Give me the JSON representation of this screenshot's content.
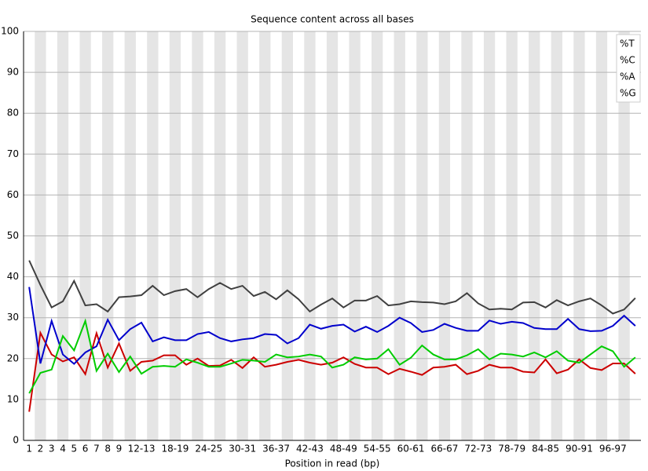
{
  "chart_data": {
    "type": "line",
    "title": "Sequence content across all bases",
    "x_label": "Position in read (bp)",
    "categories": [
      "1",
      "2",
      "3",
      "4",
      "5",
      "6",
      "7",
      "8",
      "9",
      null,
      "12-13",
      null,
      null,
      "18-19",
      null,
      null,
      "24-25",
      null,
      null,
      "30-31",
      null,
      null,
      "36-37",
      null,
      null,
      "42-43",
      null,
      null,
      "48-49",
      null,
      null,
      "54-55",
      null,
      null,
      "60-61",
      null,
      null,
      "66-67",
      null,
      null,
      "72-73",
      null,
      null,
      "78-79",
      null,
      null,
      "84-85",
      null,
      null,
      "90-91",
      null,
      null,
      "96-97",
      null,
      null
    ],
    "series": [
      {
        "name": "%T",
        "color": "#cc0000",
        "values": [
          7,
          26.3,
          21,
          19.3,
          20.3,
          16.2,
          26.2,
          17.8,
          23.7,
          17,
          19.2,
          19.5,
          20.8,
          20.8,
          18.5,
          20,
          18.2,
          18.3,
          19.7,
          17.7,
          20.3,
          18,
          18.5,
          19.2,
          19.7,
          19,
          18.5,
          19,
          20.3,
          18.7,
          17.8,
          17.8,
          16.2,
          17.5,
          16.8,
          16,
          17.8,
          18,
          18.5,
          16.2,
          17,
          18.5,
          17.8,
          17.8,
          16.8,
          16.6,
          19.8,
          16.4,
          17.3,
          19.8,
          17.7,
          17.2,
          18.8,
          18.8,
          16.3
        ]
      },
      {
        "name": "%C",
        "color": "#0000cc",
        "values": [
          37.5,
          18.8,
          29.2,
          21,
          18.7,
          21.5,
          23,
          29.5,
          24.5,
          27.2,
          28.8,
          24.2,
          25.2,
          24.5,
          24.5,
          26,
          26.5,
          25,
          24.2,
          24.7,
          25,
          26,
          25.8,
          23.7,
          25,
          28.3,
          27.3,
          28,
          28.3,
          26.6,
          27.8,
          26.5,
          28,
          30,
          28.7,
          26.5,
          27,
          28.5,
          27.5,
          26.8,
          26.8,
          29.3,
          28.5,
          29,
          28.7,
          27.5,
          27.2,
          27.2,
          29.7,
          27.2,
          26.7,
          26.8,
          28,
          30.5,
          28
        ]
      },
      {
        "name": "%A",
        "color": "#00cc00",
        "values": [
          11.5,
          16.5,
          17.3,
          25.5,
          22,
          29.2,
          17,
          21.2,
          16.7,
          20.5,
          16.3,
          18,
          18.2,
          18,
          19.8,
          19,
          18,
          18,
          18.8,
          19.7,
          19.5,
          19.2,
          21,
          20.3,
          20.5,
          21,
          20.5,
          17.8,
          18.5,
          20.3,
          19.8,
          20,
          22.3,
          18.5,
          20.2,
          23.2,
          21,
          19.8,
          19.8,
          20.8,
          22.3,
          19.8,
          21.2,
          21,
          20.5,
          21.5,
          20.3,
          21.8,
          19.5,
          19,
          21,
          23,
          21.8,
          18,
          20.3
        ]
      },
      {
        "name": "%G",
        "color": "#404040",
        "values": [
          44,
          38,
          32.5,
          34,
          39,
          33,
          33.3,
          31.5,
          35,
          35.2,
          35.5,
          37.8,
          35.5,
          36.5,
          37,
          35,
          37,
          38.5,
          37,
          37.8,
          35.3,
          36.3,
          34.5,
          36.7,
          34.5,
          31.5,
          33.2,
          34.7,
          32.5,
          34.2,
          34.2,
          35.3,
          33,
          33.3,
          34,
          33.8,
          33.7,
          33.3,
          34,
          36,
          33.5,
          32,
          32.2,
          32,
          33.7,
          33.8,
          32.5,
          34.3,
          33,
          34,
          34.7,
          33,
          31,
          32,
          34.8
        ]
      }
    ],
    "ylim": [
      0,
      100
    ],
    "yticks": [
      0,
      10,
      20,
      30,
      40,
      50,
      60,
      70,
      80,
      90,
      100
    ],
    "grid": true,
    "legend": "top-right"
  }
}
